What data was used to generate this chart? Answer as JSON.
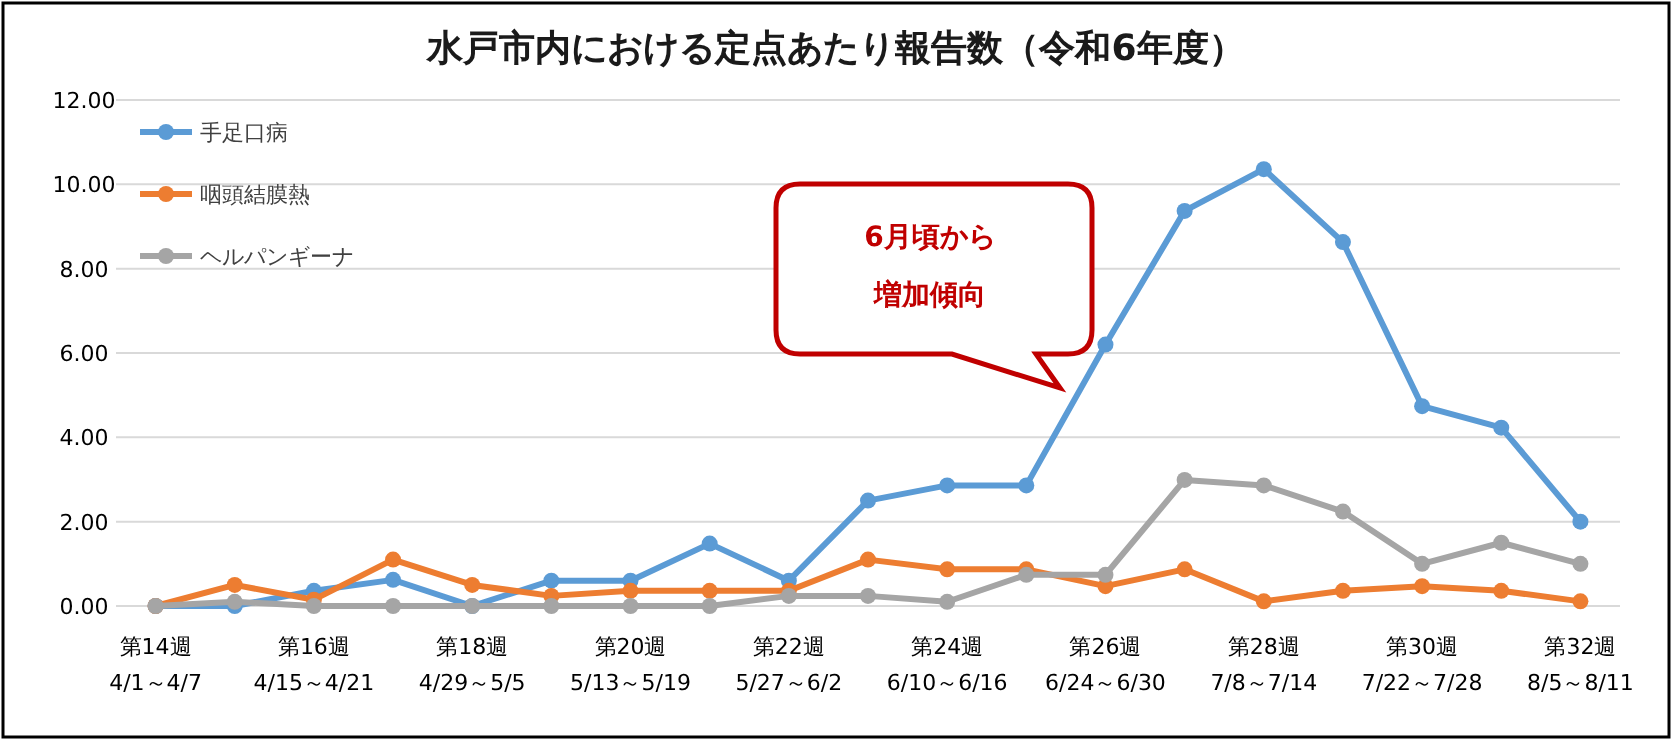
{
  "chart_data": {
    "type": "line",
    "title": "水戸市内における定点あたり報告数（令和6年度）",
    "categories": [
      "第14週\n4/1～4/7",
      null,
      "第16週\n4/15～4/21",
      null,
      "第18週\n4/29～5/5",
      null,
      "第20週\n5/13～5/19",
      null,
      "第22週\n5/27～6/2",
      null,
      "第24週\n6/10～6/16",
      null,
      "第26週\n6/24～6/30",
      null,
      "第28週\n7/8～7/14",
      null,
      "第30週\n7/22～7/28",
      null,
      "第32週\n8/5～8/11"
    ],
    "series": [
      {
        "name": "手足口病",
        "color": "#5b9bd5",
        "values": [
          0,
          0,
          0.36,
          0.62,
          0,
          0.6,
          0.6,
          1.48,
          0.6,
          2.5,
          2.86,
          2.86,
          6.2,
          9.37,
          10.36,
          8.63,
          4.74,
          4.23,
          2.0
        ]
      },
      {
        "name": "咽頭結膜熱",
        "color": "#ed7d31",
        "values": [
          0,
          0.5,
          0.15,
          1.1,
          0.5,
          0.24,
          0.36,
          0.36,
          0.36,
          1.1,
          0.87,
          0.87,
          0.47,
          0.87,
          0.11,
          0.36,
          0.47,
          0.36,
          0.11
        ]
      },
      {
        "name": "ヘルパンギーナ",
        "color": "#a5a5a5",
        "values": [
          0,
          0.1,
          0,
          0,
          0,
          0,
          0,
          0,
          0.24,
          0.24,
          0.1,
          0.74,
          0.74,
          2.99,
          2.86,
          2.24,
          1.0,
          1.5,
          1.0
        ]
      }
    ],
    "ylim": [
      0,
      12
    ],
    "yticks": [
      {
        "value": 0,
        "label": "0.00"
      },
      {
        "value": 2,
        "label": "2.00"
      },
      {
        "value": 4,
        "label": "4.00"
      },
      {
        "value": 6,
        "label": "6.00"
      },
      {
        "value": 8,
        "label": "8.00"
      },
      {
        "value": 10,
        "label": "10.00"
      },
      {
        "value": 12,
        "label": "12.00"
      }
    ],
    "grid": "y",
    "legend": "top left",
    "marker": "circle",
    "line_style": "solid",
    "annotations": [
      "6月頃から",
      "増加傾向"
    ]
  }
}
